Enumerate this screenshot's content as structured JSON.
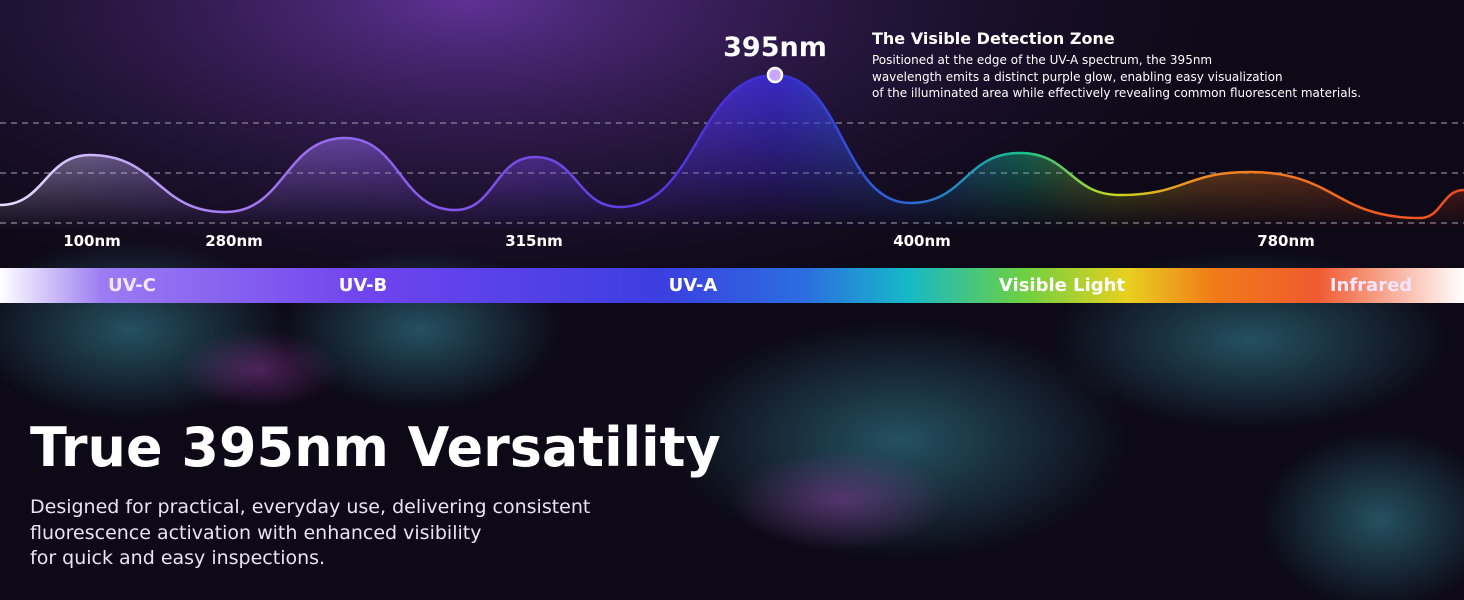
{
  "peak_label": "395nm",
  "callout": {
    "title": "The Visible Detection Zone",
    "lines": [
      "Positioned at the edge of the UV-A spectrum, the 395nm",
      "wavelength emits a distinct purple glow, enabling easy visualization",
      "of the illuminated area while effectively revealing common fluorescent materials."
    ]
  },
  "wavelengths": [
    "100nm",
    "280nm",
    "315nm",
    "400nm",
    "780nm"
  ],
  "bands": [
    "UV-C",
    "UV-B",
    "UV-A",
    "Visible Light",
    "Infrared"
  ],
  "headline": "True 395nm Versatility",
  "body": [
    "Designed for practical, everyday use, delivering consistent",
    "fluorescence activation with enhanced visibility",
    "for quick and easy inspections."
  ]
}
